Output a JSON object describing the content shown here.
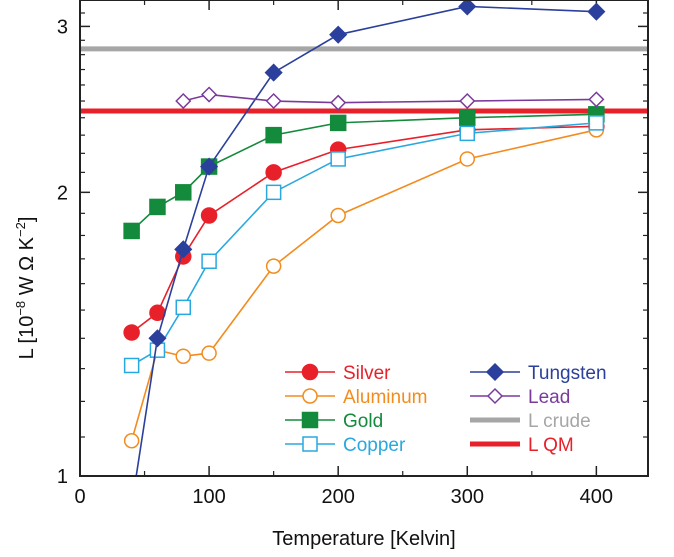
{
  "chart_data": {
    "type": "line",
    "xlabel": "Temperature [Kelvin]",
    "ylabel_parts": {
      "prefix": "L [10",
      "exp1": "−8",
      "mid": " W Ω K",
      "exp2": "−2",
      "suffix": "]"
    },
    "xlim": [
      0,
      440
    ],
    "ylim": [
      1,
      3.2
    ],
    "y_scale": "log",
    "x_ticks": [
      0,
      100,
      200,
      300,
      400
    ],
    "x_tick_labels": [
      "0",
      "100",
      "200",
      "300",
      "400"
    ],
    "y_ticks": [
      1,
      2,
      3
    ],
    "y_tick_labels": [
      "1",
      "2",
      "3"
    ],
    "grid": false,
    "legend_position": "bottom-right",
    "series": [
      {
        "name": "Silver",
        "color": "#e8202a",
        "marker": "circle",
        "filled": true,
        "x": [
          40,
          60,
          80,
          100,
          150,
          200,
          300,
          400
        ],
        "y": [
          1.42,
          1.49,
          1.71,
          1.89,
          2.1,
          2.22,
          2.33,
          2.35
        ]
      },
      {
        "name": "Aluminum",
        "color": "#f28c1e",
        "marker": "circle",
        "filled": false,
        "x": [
          40,
          60,
          80,
          100,
          150,
          200,
          300,
          400
        ],
        "y": [
          1.09,
          1.36,
          1.34,
          1.35,
          1.67,
          1.89,
          2.17,
          2.33
        ]
      },
      {
        "name": "Gold",
        "color": "#138a3c",
        "marker": "square",
        "filled": true,
        "x": [
          40,
          60,
          80,
          100,
          150,
          200,
          300,
          400
        ],
        "y": [
          1.82,
          1.93,
          2.0,
          2.13,
          2.3,
          2.37,
          2.4,
          2.42
        ]
      },
      {
        "name": "Copper",
        "color": "#29a8e0",
        "marker": "square",
        "filled": false,
        "x": [
          40,
          60,
          80,
          100,
          150,
          200,
          300,
          400
        ],
        "y": [
          1.31,
          1.36,
          1.51,
          1.69,
          2.0,
          2.17,
          2.31,
          2.37
        ]
      },
      {
        "name": "Tungsten",
        "color": "#2b3f9c",
        "marker": "diamond",
        "filled": true,
        "x": [
          40,
          60,
          80,
          100,
          150,
          200,
          300,
          400
        ],
        "y": [
          0.93,
          1.4,
          1.74,
          2.13,
          2.68,
          2.94,
          3.15,
          3.11
        ]
      },
      {
        "name": "Lead",
        "color": "#7a3a9a",
        "marker": "diamond",
        "filled": false,
        "x": [
          80,
          100,
          150,
          200,
          300,
          400
        ],
        "y": [
          2.5,
          2.54,
          2.5,
          2.49,
          2.5,
          2.51
        ]
      }
    ],
    "reference_lines": [
      {
        "name": "L crude",
        "color": "#a6a6a6",
        "y": 2.84
      },
      {
        "name": "L QM",
        "color": "#e8202a",
        "y": 2.44
      }
    ]
  }
}
